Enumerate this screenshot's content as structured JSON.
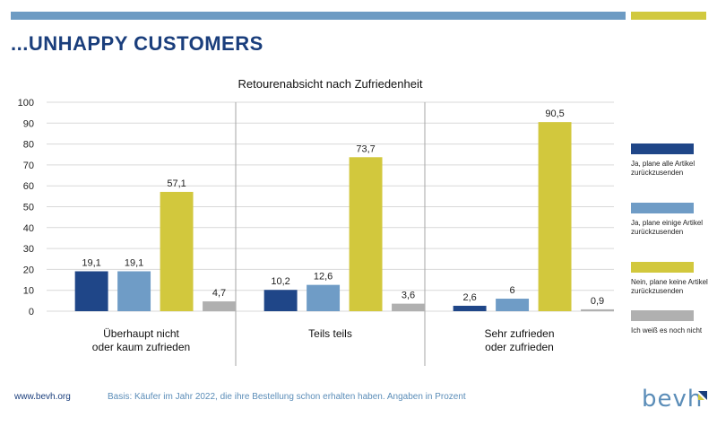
{
  "header": {
    "headline": "...UNHAPPY CUSTOMERS"
  },
  "colors": {
    "accent_blue": "#6d9bc3",
    "accent_yellow": "#d1c93f",
    "brand_navy": "#1a3e7c"
  },
  "chart_data": {
    "type": "bar",
    "title": "Retourenabsicht nach Zufriedenheit",
    "xlabel": "",
    "ylabel": "",
    "ylim": [
      0,
      100
    ],
    "yticks": [
      0,
      10,
      20,
      30,
      40,
      50,
      60,
      70,
      80,
      90,
      100
    ],
    "grid": true,
    "legend_position": "right",
    "categories": [
      "Überhaupt nicht oder kaum zufrieden",
      "Teils teils",
      "Sehr zufrieden oder zufrieden"
    ],
    "series": [
      {
        "name": "Ja, plane alle Artikel zurückzusenden",
        "color": "#1f4688",
        "values": [
          19.1,
          10.2,
          2.6
        ],
        "labels": [
          "19,1",
          "10,2",
          "2,6"
        ]
      },
      {
        "name": "Ja, plane einige Artikel zurückzusenden",
        "color": "#6f9cc6",
        "values": [
          19.1,
          12.6,
          6
        ],
        "labels": [
          "19,1",
          "12,6",
          "6"
        ]
      },
      {
        "name": "Nein, plane keine Artikel zurückzusenden",
        "color": "#d2c83d",
        "values": [
          57.1,
          73.7,
          90.5
        ],
        "labels": [
          "57,1",
          "73,7",
          "90,5"
        ]
      },
      {
        "name": "Ich weiß es noch nicht",
        "color": "#b0b0b0",
        "values": [
          4.7,
          3.6,
          0.9
        ],
        "labels": [
          "4,7",
          "3,6",
          "0,9"
        ]
      }
    ]
  },
  "footer": {
    "url": "www.bevh.org",
    "note": "Basis: Käufer im Jahr 2022, die ihre Bestellung schon erhalten haben. Angaben in Prozent",
    "logo": "bevh"
  }
}
